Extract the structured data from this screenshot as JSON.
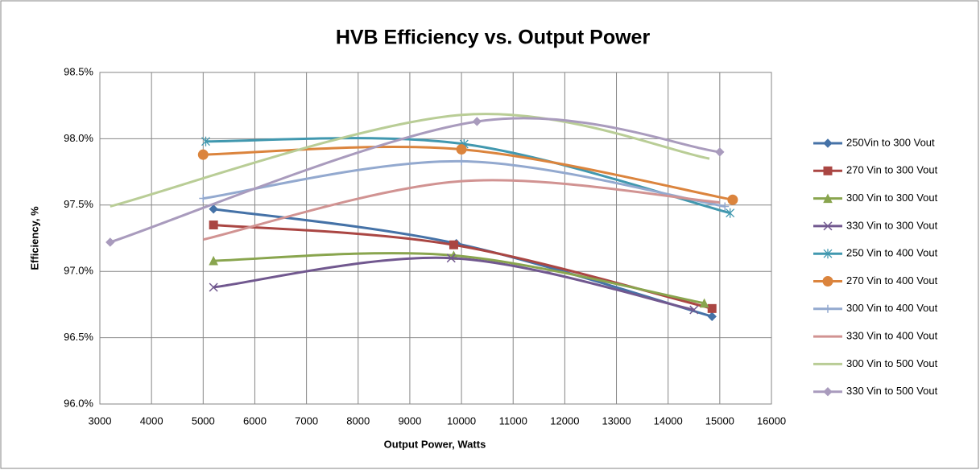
{
  "chart_data": {
    "type": "line",
    "title": "HVB Efficiency vs. Output Power",
    "x_label": "Output Power, Watts",
    "y_label": "Efficiency, %",
    "xlim": [
      3000,
      16000
    ],
    "xticks": [
      3000,
      4000,
      5000,
      6000,
      7000,
      8000,
      9000,
      10000,
      11000,
      12000,
      13000,
      14000,
      15000,
      16000
    ],
    "ylim": [
      96,
      98.5
    ],
    "yticks": [
      {
        "value": 96,
        "label": "96.0%"
      },
      {
        "value": 96.5,
        "label": "96.5%"
      },
      {
        "value": 97,
        "label": "97.0%"
      },
      {
        "value": 97.5,
        "label": "97.5%"
      },
      {
        "value": 98,
        "label": "98.0%"
      },
      {
        "value": 98.5,
        "label": "98.5%"
      }
    ],
    "grid": true,
    "smooth": true,
    "legend": "right",
    "series": [
      {
        "name": "250Vin to 300 Vout",
        "color": "#4572A7",
        "marker": "diamond",
        "x": [
          5200,
          9900,
          14850
        ],
        "values": [
          97.47,
          97.21,
          96.66
        ]
      },
      {
        "name": "270 Vin to 300 Vout",
        "color": "#AA4643",
        "marker": "square",
        "x": [
          5200,
          9850,
          14850
        ],
        "values": [
          97.35,
          97.2,
          96.72
        ]
      },
      {
        "name": "300 Vin to 300 Vout",
        "color": "#89A54E",
        "marker": "triangle",
        "x": [
          5200,
          9850,
          14700
        ],
        "values": [
          97.08,
          97.12,
          96.76
        ]
      },
      {
        "name": "330 Vin to 300 Vout",
        "color": "#71588F",
        "marker": "x",
        "x": [
          5200,
          9800,
          14500
        ],
        "values": [
          96.88,
          97.1,
          96.71
        ]
      },
      {
        "name": "250 Vin to 400 Vout",
        "color": "#4198AF",
        "marker": "star",
        "x": [
          5050,
          10050,
          15200
        ],
        "values": [
          97.98,
          97.96,
          97.44
        ]
      },
      {
        "name": "270 Vin to 400 Vout",
        "color": "#DB843D",
        "marker": "circle",
        "x": [
          5000,
          10000,
          15250
        ],
        "values": [
          97.88,
          97.92,
          97.54
        ]
      },
      {
        "name": "300 Vin to 400 Vout",
        "color": "#93A9CF",
        "marker": "plus",
        "x": [
          5000,
          10000,
          15100
        ],
        "values": [
          97.55,
          97.83,
          97.49
        ]
      },
      {
        "name": "330 Vin to 400 Vout",
        "color": "#D19392",
        "marker": "none",
        "x": [
          5000,
          10000,
          15000
        ],
        "values": [
          97.24,
          97.68,
          97.52
        ]
      },
      {
        "name": "300 Vin to 500 Vout",
        "color": "#B9CD96",
        "marker": "none",
        "x": [
          3200,
          10000,
          14800
        ],
        "values": [
          97.49,
          98.18,
          97.85
        ]
      },
      {
        "name": "330 Vin to 500 Vout",
        "color": "#A99BBD",
        "marker": "diamond",
        "x": [
          3200,
          10300,
          15000
        ],
        "values": [
          97.22,
          98.13,
          97.9
        ]
      }
    ]
  }
}
